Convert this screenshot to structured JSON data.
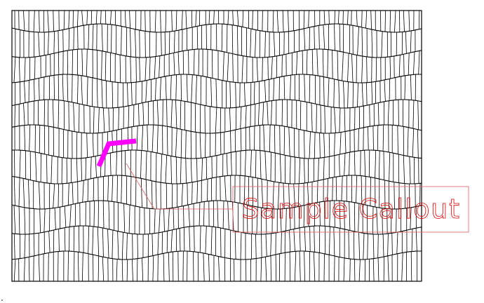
{
  "callout": {
    "label": "Sample Callout"
  }
}
